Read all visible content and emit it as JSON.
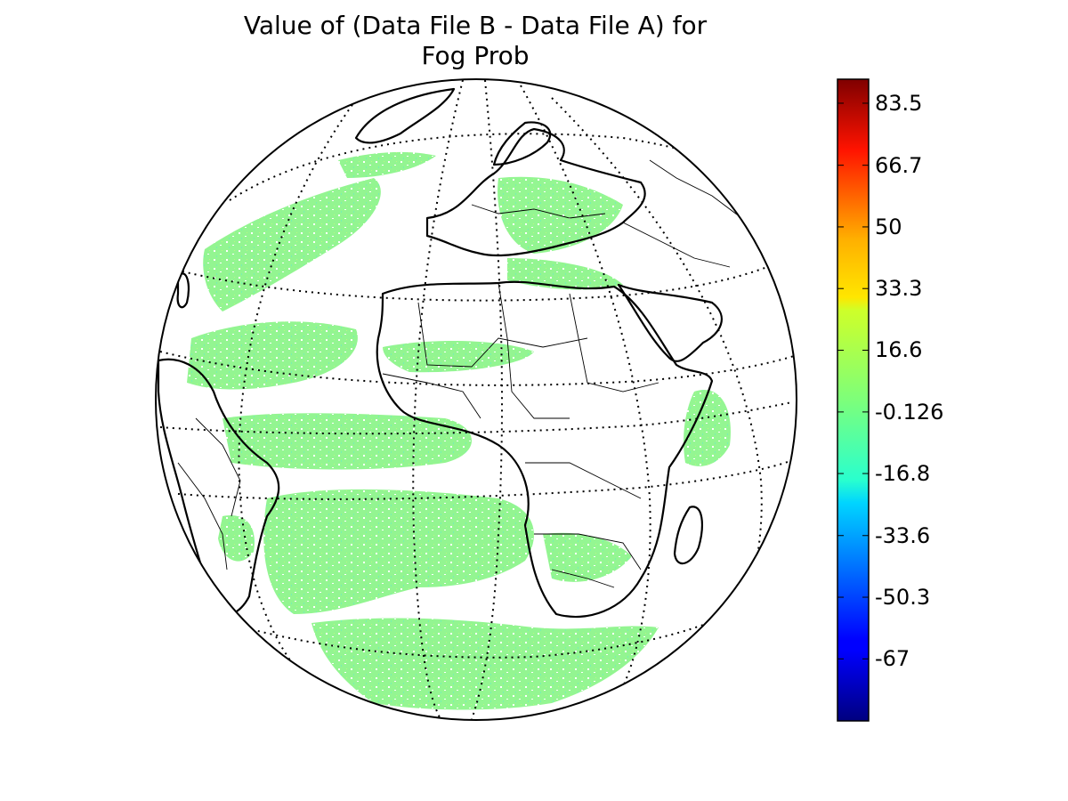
{
  "title": {
    "line1": "Value of (Data File B - Data File A) for",
    "line2": "Fog Prob"
  },
  "colorbar": {
    "min": -83.8,
    "max": 90,
    "colormap": "jet",
    "ticks": [
      {
        "value": 83.5,
        "label": "83.5"
      },
      {
        "value": 66.7,
        "label": "66.7"
      },
      {
        "value": 50,
        "label": "50"
      },
      {
        "value": 33.3,
        "label": "33.3"
      },
      {
        "value": 16.6,
        "label": "16.6"
      },
      {
        "value": -0.126,
        "label": "-0.126"
      },
      {
        "value": -16.8,
        "label": "-16.8"
      },
      {
        "value": -33.6,
        "label": "-33.6"
      },
      {
        "value": -50.3,
        "label": "-50.3"
      },
      {
        "value": -67,
        "label": "-67"
      }
    ]
  },
  "map": {
    "projection": "orthographic",
    "graticule": "dotted",
    "field_color": "#8ef58c"
  }
}
